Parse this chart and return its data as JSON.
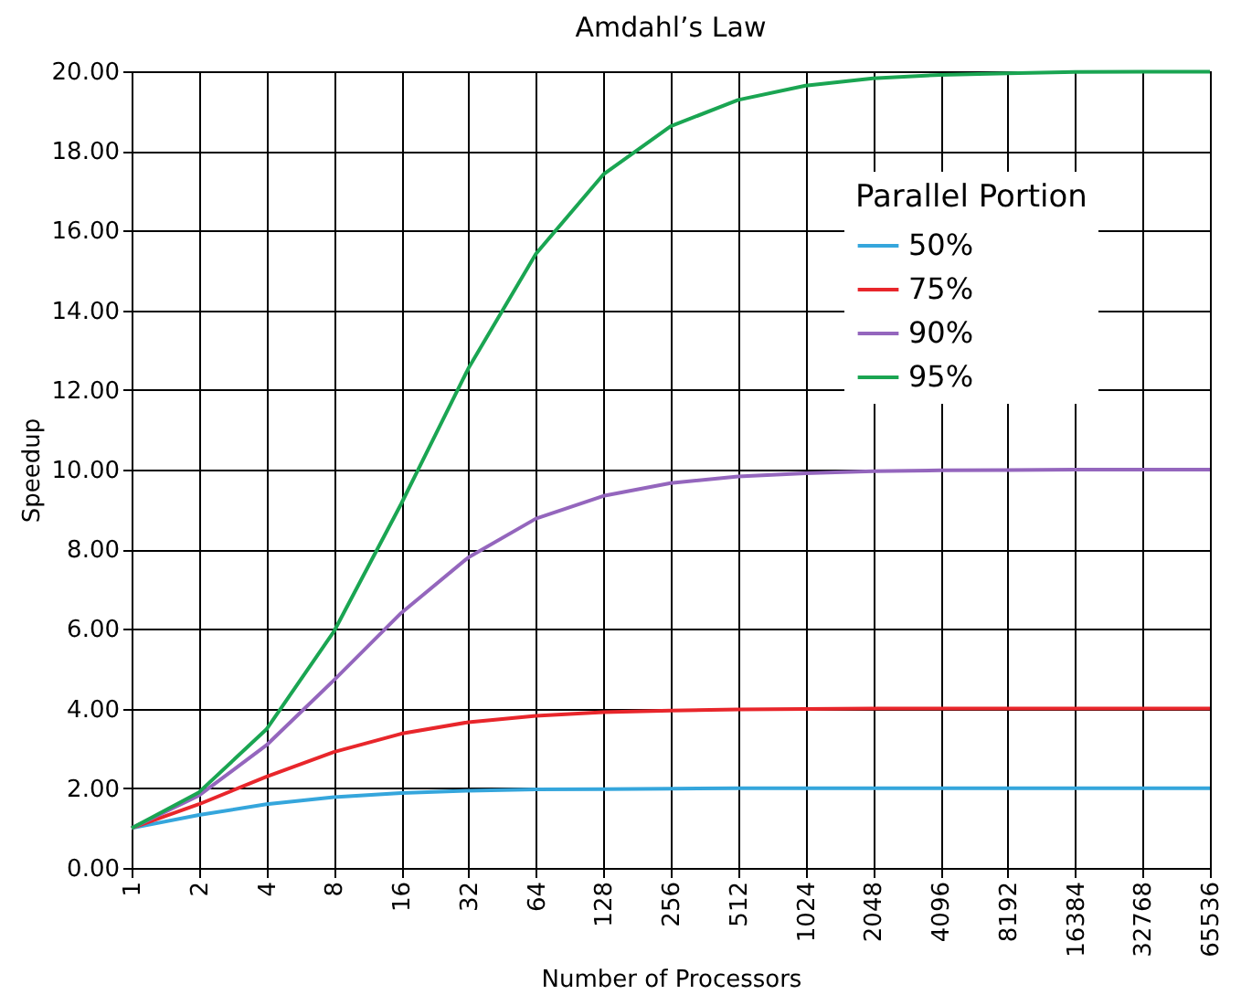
{
  "chart_data": {
    "type": "line",
    "title": "Amdahl’s Law",
    "xlabel": "Number of Processors",
    "ylabel": "Speedup",
    "legend_title": "Parallel Portion",
    "categories": [
      "1",
      "2",
      "4",
      "8",
      "16",
      "32",
      "64",
      "128",
      "256",
      "512",
      "1024",
      "2048",
      "4096",
      "8192",
      "16384",
      "32768",
      "65536"
    ],
    "series": [
      {
        "name": "50%",
        "color": "#35a6dc",
        "values": [
          1,
          1.33,
          1.6,
          1.78,
          1.88,
          1.94,
          1.97,
          1.98,
          1.99,
          2,
          2,
          2,
          2,
          2,
          2,
          2,
          2
        ]
      },
      {
        "name": "75%",
        "color": "#e8262b",
        "values": [
          1,
          1.6,
          2.29,
          2.91,
          3.37,
          3.66,
          3.82,
          3.91,
          3.95,
          3.98,
          3.99,
          4,
          4,
          4,
          4,
          4,
          4
        ]
      },
      {
        "name": "90%",
        "color": "#9466bd",
        "values": [
          1,
          1.82,
          3.08,
          4.71,
          6.4,
          7.8,
          8.77,
          9.34,
          9.66,
          9.83,
          9.91,
          9.96,
          9.98,
          9.99,
          10,
          10,
          10
        ]
      },
      {
        "name": "95%",
        "color": "#1aa552",
        "values": [
          1,
          1.9,
          3.48,
          5.93,
          9.14,
          12.55,
          15.42,
          17.41,
          18.62,
          19.28,
          19.64,
          19.82,
          19.91,
          19.95,
          19.98,
          19.99,
          19.99
        ]
      }
    ],
    "ylim": [
      0,
      20
    ],
    "yticks": [
      {
        "value": 0,
        "label": "0.00"
      },
      {
        "value": 2,
        "label": "2.00"
      },
      {
        "value": 4,
        "label": "4.00"
      },
      {
        "value": 6,
        "label": "6.00"
      },
      {
        "value": 8,
        "label": "8.00"
      },
      {
        "value": 10,
        "label": "10.00"
      },
      {
        "value": 12,
        "label": "12.00"
      },
      {
        "value": 14,
        "label": "14.00"
      },
      {
        "value": 16,
        "label": "16.00"
      },
      {
        "value": 18,
        "label": "18.00"
      },
      {
        "value": 20,
        "label": "20.00"
      }
    ],
    "grid": true,
    "legend": "top right"
  }
}
